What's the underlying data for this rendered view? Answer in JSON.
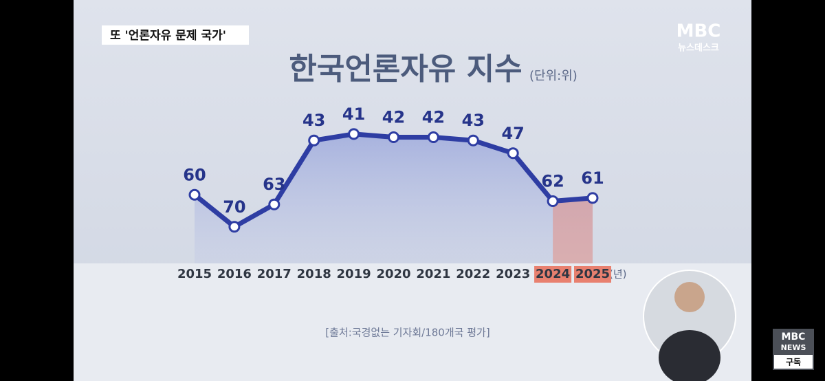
{
  "caption": "또 '언론자유 문제 국가'",
  "logo": {
    "top": "MBC",
    "bottom": "뉴스데스크"
  },
  "corner_logo": {
    "top": "MBC",
    "middle": "NEWS",
    "bottom": "구독"
  },
  "chart_data": {
    "type": "line",
    "title": "한국언론자유 지수",
    "unit": "(단위:위)",
    "x_unit": "(년)",
    "source": "[출처:국경없는 기자회/180개국 평가]",
    "categories": [
      "2015",
      "2016",
      "2017",
      "2018",
      "2019",
      "2020",
      "2021",
      "2022",
      "2023",
      "2024",
      "2025"
    ],
    "values": [
      60,
      70,
      63,
      43,
      41,
      42,
      42,
      43,
      47,
      62,
      61
    ],
    "color": "#2e3da3",
    "ylim": [
      35,
      75
    ],
    "y_inverted": true,
    "highlight": {
      "indices": [
        9,
        10
      ],
      "color": "#e8806f"
    }
  }
}
